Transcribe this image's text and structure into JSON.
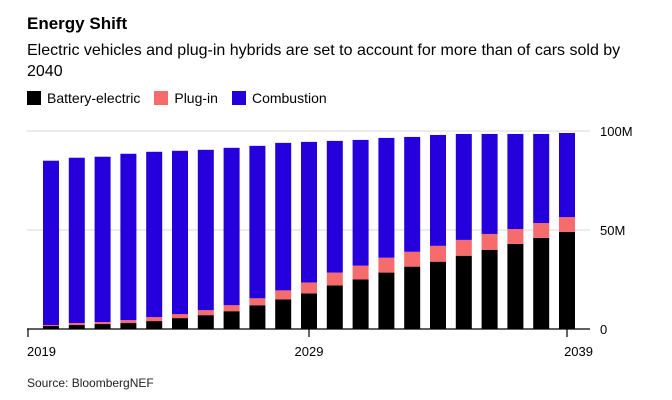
{
  "title": "Energy Shift",
  "subtitle": "Electric vehicles and plug-in hybrids are set to account for more than of cars sold by 2040",
  "source": "Source: BloombergNEF",
  "colors": {
    "battery": "#000000",
    "plugin": "#f66b6b",
    "combustion": "#2500dc",
    "grid": "#d9d9d9"
  },
  "chart_data": {
    "type": "bar",
    "stacked": true,
    "categories": [
      "2019",
      "2020",
      "2021",
      "2022",
      "2023",
      "2024",
      "2025",
      "2026",
      "2027",
      "2028",
      "2029",
      "2030",
      "2031",
      "2032",
      "2033",
      "2034",
      "2035",
      "2036",
      "2037",
      "2038",
      "2039"
    ],
    "series": [
      {
        "name": "Battery-electric",
        "color": "#000000",
        "values": [
          1.5,
          2.0,
          2.5,
          3.0,
          4.0,
          5.5,
          7.0,
          9.0,
          12.0,
          15.0,
          18.0,
          22.0,
          25.0,
          28.5,
          31.5,
          34.0,
          37.0,
          40.0,
          43.0,
          46.0,
          49.0
        ]
      },
      {
        "name": "Plug-in",
        "color": "#f66b6b",
        "values": [
          0.5,
          1.0,
          1.0,
          1.5,
          2.0,
          2.0,
          2.5,
          3.0,
          3.5,
          4.5,
          5.5,
          6.5,
          7.0,
          7.5,
          7.5,
          8.0,
          8.0,
          8.0,
          7.5,
          7.5,
          7.5
        ]
      },
      {
        "name": "Combustion",
        "color": "#2500dc",
        "values": [
          83.0,
          83.5,
          83.5,
          84.0,
          83.5,
          82.5,
          81.0,
          79.5,
          77.0,
          74.5,
          71.0,
          66.5,
          63.5,
          60.5,
          58.0,
          56.0,
          53.5,
          50.5,
          48.0,
          45.0,
          42.5
        ]
      }
    ],
    "yaxis": {
      "ticks": [
        "0",
        "50M",
        "100M"
      ],
      "tick_values": [
        0,
        50,
        100
      ],
      "ylim": [
        0,
        100
      ],
      "side": "right"
    },
    "xaxis": {
      "labels": [
        "2019",
        "2029",
        "2039"
      ]
    },
    "grid": true,
    "legend": "top-left"
  }
}
